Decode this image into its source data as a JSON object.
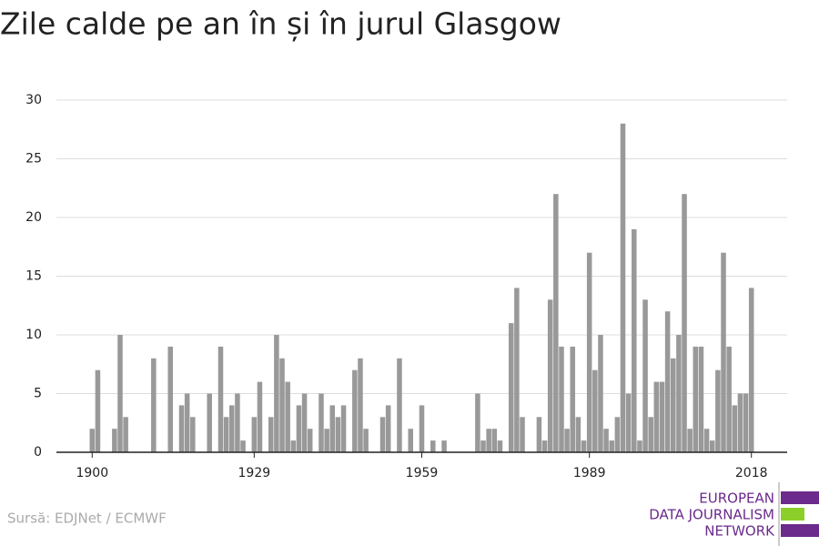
{
  "chart_data": {
    "type": "bar",
    "title": "Zile calde pe an în și în jurul Glasgow",
    "x": [
      1900,
      1901,
      1904,
      1905,
      1906,
      1911,
      1914,
      1916,
      1917,
      1918,
      1921,
      1923,
      1924,
      1925,
      1926,
      1927,
      1929,
      1930,
      1932,
      1933,
      1934,
      1935,
      1936,
      1937,
      1938,
      1939,
      1941,
      1942,
      1943,
      1944,
      1945,
      1947,
      1948,
      1949,
      1952,
      1953,
      1955,
      1957,
      1959,
      1961,
      1963,
      1969,
      1970,
      1971,
      1972,
      1973,
      1975,
      1976,
      1977,
      1980,
      1981,
      1982,
      1983,
      1984,
      1985,
      1986,
      1987,
      1988,
      1989,
      1990,
      1991,
      1992,
      1993,
      1994,
      1995,
      1996,
      1997,
      1998,
      1999,
      2000,
      2001,
      2002,
      2003,
      2004,
      2005,
      2006,
      2007,
      2008,
      2009,
      2010,
      2011,
      2012,
      2013,
      2014,
      2015,
      2016,
      2017,
      2018
    ],
    "values": [
      2,
      7,
      2,
      10,
      3,
      8,
      9,
      4,
      5,
      3,
      5,
      9,
      3,
      4,
      5,
      1,
      3,
      6,
      3,
      10,
      8,
      6,
      1,
      4,
      5,
      2,
      5,
      2,
      4,
      3,
      4,
      7,
      8,
      2,
      3,
      4,
      8,
      2,
      4,
      1,
      1,
      5,
      1,
      2,
      2,
      1,
      11,
      14,
      3,
      3,
      1,
      13,
      22,
      9,
      2,
      9,
      3,
      1,
      17,
      7,
      10,
      2,
      1,
      3,
      28,
      5,
      19,
      1,
      13,
      3,
      6,
      6,
      12,
      8,
      10,
      22,
      2,
      9,
      9,
      2,
      1,
      7,
      17,
      9,
      4,
      5,
      5,
      14
    ],
    "color": "#999999",
    "xlim": [
      1893.6,
      2024.4
    ],
    "xticks": [
      1900,
      1929,
      1959,
      1989,
      2018
    ],
    "ylim": [
      0,
      30
    ],
    "yticks": [
      0,
      5,
      10,
      15,
      20,
      25,
      30
    ],
    "grid": true,
    "source": "Sursă: EDJNet / ECMWF",
    "logo": [
      "EUROPEAN",
      "DATA JOURNALISM",
      "NETWORK"
    ]
  }
}
